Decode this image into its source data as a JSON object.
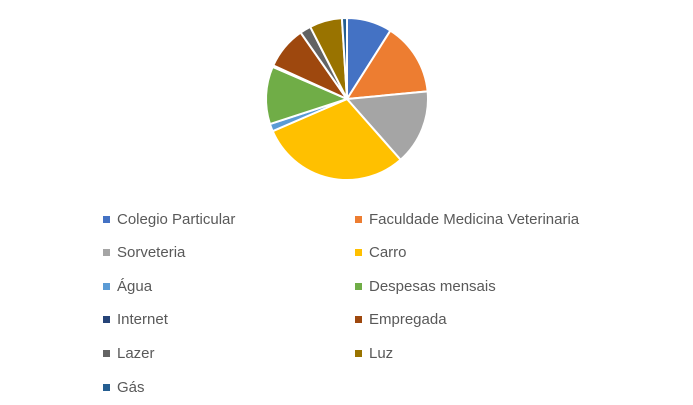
{
  "chart_data": {
    "type": "pie",
    "title": "",
    "legend_position": "bottom",
    "slices": [
      {
        "name": "Colegio Particular",
        "value": 9.0,
        "color": "#4472C4"
      },
      {
        "name": "Faculdade Medicina Veterinaria",
        "value": 14.5,
        "color": "#ED7D31"
      },
      {
        "name": "Sorveteria",
        "value": 15.0,
        "color": "#A5A5A5"
      },
      {
        "name": "Carro",
        "value": 30.0,
        "color": "#FFC000"
      },
      {
        "name": "Água",
        "value": 1.5,
        "color": "#5B9BD5"
      },
      {
        "name": "Despesas mensais",
        "value": 11.5,
        "color": "#70AD47"
      },
      {
        "name": "Internet",
        "value": 0.3,
        "color": "#264478"
      },
      {
        "name": "Empregada",
        "value": 8.5,
        "color": "#9E480E"
      },
      {
        "name": "Lazer",
        "value": 2.2,
        "color": "#636363"
      },
      {
        "name": "Luz",
        "value": 6.5,
        "color": "#997300"
      },
      {
        "name": "Gás",
        "value": 1.0,
        "color": "#255E91"
      }
    ]
  }
}
